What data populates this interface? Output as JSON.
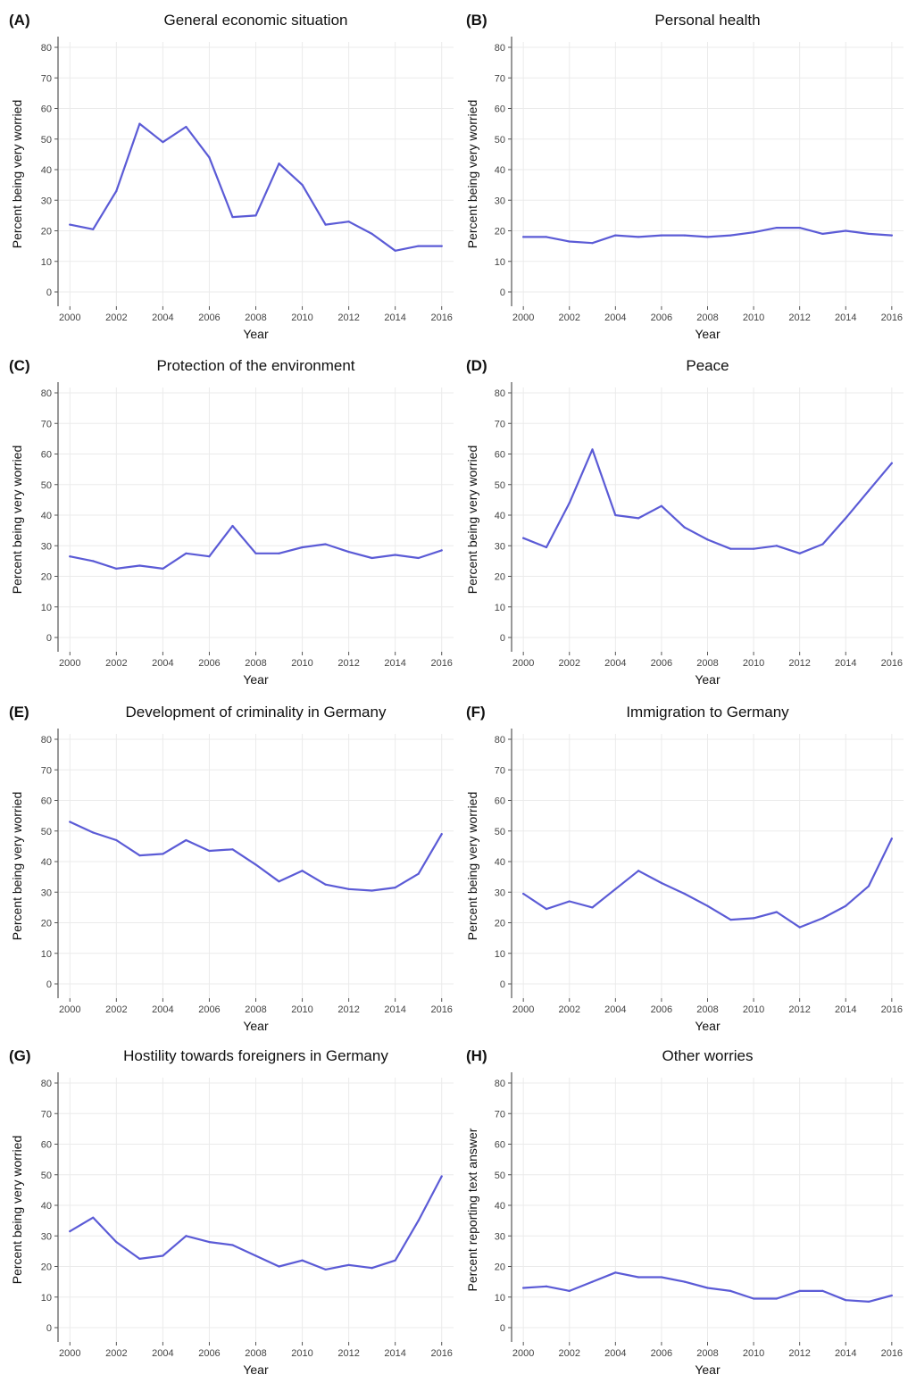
{
  "chart_data": [
    {
      "type": "line",
      "panel": "(A)",
      "title": "General economic situation",
      "xlabel": "Year",
      "ylabel": "Percent being very worried",
      "xlim": [
        2000,
        2016
      ],
      "ylim": [
        0,
        80
      ],
      "x_ticks": [
        2000,
        2002,
        2004,
        2006,
        2008,
        2010,
        2012,
        2014,
        2016
      ],
      "y_ticks": [
        0,
        10,
        20,
        30,
        40,
        50,
        60,
        70,
        80
      ],
      "x": [
        2000,
        2001,
        2002,
        2003,
        2004,
        2005,
        2006,
        2007,
        2008,
        2009,
        2010,
        2011,
        2012,
        2013,
        2014,
        2015,
        2016
      ],
      "values": [
        22,
        20.5,
        33,
        55,
        49,
        54,
        44,
        24.5,
        25,
        42,
        35,
        22,
        23,
        19,
        13.5,
        15,
        15
      ],
      "grid": true,
      "line_color": "#5b5bd6"
    },
    {
      "type": "line",
      "panel": "(B)",
      "title": "Personal health",
      "xlabel": "Year",
      "ylabel": "Percent being very worried",
      "xlim": [
        2000,
        2016
      ],
      "ylim": [
        0,
        80
      ],
      "x_ticks": [
        2000,
        2002,
        2004,
        2006,
        2008,
        2010,
        2012,
        2014,
        2016
      ],
      "y_ticks": [
        0,
        10,
        20,
        30,
        40,
        50,
        60,
        70,
        80
      ],
      "x": [
        2000,
        2001,
        2002,
        2003,
        2004,
        2005,
        2006,
        2007,
        2008,
        2009,
        2010,
        2011,
        2012,
        2013,
        2014,
        2015,
        2016
      ],
      "values": [
        18,
        18,
        16.5,
        16,
        18.5,
        18,
        18.5,
        18.5,
        18,
        18.5,
        19.5,
        21,
        21,
        19,
        20,
        19,
        18.5
      ],
      "grid": true,
      "line_color": "#5b5bd6"
    },
    {
      "type": "line",
      "panel": "(C)",
      "title": "Protection of the environment",
      "xlabel": "Year",
      "ylabel": "Percent being very worried",
      "xlim": [
        2000,
        2016
      ],
      "ylim": [
        0,
        80
      ],
      "x_ticks": [
        2000,
        2002,
        2004,
        2006,
        2008,
        2010,
        2012,
        2014,
        2016
      ],
      "y_ticks": [
        0,
        10,
        20,
        30,
        40,
        50,
        60,
        70,
        80
      ],
      "x": [
        2000,
        2001,
        2002,
        2003,
        2004,
        2005,
        2006,
        2007,
        2008,
        2009,
        2010,
        2011,
        2012,
        2013,
        2014,
        2015,
        2016
      ],
      "values": [
        26.5,
        25,
        22.5,
        23.5,
        22.5,
        27.5,
        26.5,
        36.5,
        27.5,
        27.5,
        29.5,
        30.5,
        28,
        26,
        27,
        26,
        28.5
      ],
      "grid": true,
      "line_color": "#5b5bd6"
    },
    {
      "type": "line",
      "panel": "(D)",
      "title": "Peace",
      "xlabel": "Year",
      "ylabel": "Percent being very worried",
      "xlim": [
        2000,
        2016
      ],
      "ylim": [
        0,
        80
      ],
      "x_ticks": [
        2000,
        2002,
        2004,
        2006,
        2008,
        2010,
        2012,
        2014,
        2016
      ],
      "y_ticks": [
        0,
        10,
        20,
        30,
        40,
        50,
        60,
        70,
        80
      ],
      "x": [
        2000,
        2001,
        2002,
        2003,
        2004,
        2005,
        2006,
        2007,
        2008,
        2009,
        2010,
        2011,
        2012,
        2013,
        2014,
        2015,
        2016
      ],
      "values": [
        32.5,
        29.5,
        44,
        61.5,
        40,
        39,
        43,
        36,
        32,
        29,
        29,
        30,
        27.5,
        30.5,
        39,
        48,
        57
      ],
      "grid": true,
      "line_color": "#5b5bd6"
    },
    {
      "type": "line",
      "panel": "(E)",
      "title": "Development of criminality in Germany",
      "xlabel": "Year",
      "ylabel": "Percent being very worried",
      "xlim": [
        2000,
        2016
      ],
      "ylim": [
        0,
        80
      ],
      "x_ticks": [
        2000,
        2002,
        2004,
        2006,
        2008,
        2010,
        2012,
        2014,
        2016
      ],
      "y_ticks": [
        0,
        10,
        20,
        30,
        40,
        50,
        60,
        70,
        80
      ],
      "x": [
        2000,
        2001,
        2002,
        2003,
        2004,
        2005,
        2006,
        2007,
        2008,
        2009,
        2010,
        2011,
        2012,
        2013,
        2014,
        2015,
        2016
      ],
      "values": [
        53,
        49.5,
        47,
        42,
        42.5,
        47,
        43.5,
        44,
        39,
        33.5,
        37,
        32.5,
        31,
        30.5,
        31.5,
        36,
        49
      ],
      "grid": true,
      "line_color": "#5b5bd6"
    },
    {
      "type": "line",
      "panel": "(F)",
      "title": "Immigration to Germany",
      "xlabel": "Year",
      "ylabel": "Percent being very worried",
      "xlim": [
        2000,
        2016
      ],
      "ylim": [
        0,
        80
      ],
      "x_ticks": [
        2000,
        2002,
        2004,
        2006,
        2008,
        2010,
        2012,
        2014,
        2016
      ],
      "y_ticks": [
        0,
        10,
        20,
        30,
        40,
        50,
        60,
        70,
        80
      ],
      "x": [
        2000,
        2001,
        2002,
        2003,
        2004,
        2005,
        2006,
        2007,
        2008,
        2009,
        2010,
        2011,
        2012,
        2013,
        2014,
        2015,
        2016
      ],
      "values": [
        29.5,
        24.5,
        27,
        25,
        31,
        37,
        33,
        29.5,
        25.5,
        21,
        21.5,
        23.5,
        18.5,
        21.5,
        25.5,
        32,
        47.5
      ],
      "grid": true,
      "line_color": "#5b5bd6"
    },
    {
      "type": "line",
      "panel": "(G)",
      "title": "Hostility towards foreigners in Germany",
      "xlabel": "Year",
      "ylabel": "Percent being very worried",
      "xlim": [
        2000,
        2016
      ],
      "ylim": [
        0,
        80
      ],
      "x_ticks": [
        2000,
        2002,
        2004,
        2006,
        2008,
        2010,
        2012,
        2014,
        2016
      ],
      "y_ticks": [
        0,
        10,
        20,
        30,
        40,
        50,
        60,
        70,
        80
      ],
      "x": [
        2000,
        2001,
        2002,
        2003,
        2004,
        2005,
        2006,
        2007,
        2008,
        2009,
        2010,
        2011,
        2012,
        2013,
        2014,
        2015,
        2016
      ],
      "values": [
        31.5,
        36,
        28,
        22.5,
        23.5,
        30,
        28,
        27,
        23.5,
        20,
        22,
        19,
        20.5,
        19.5,
        22,
        35,
        49.5
      ],
      "grid": true,
      "line_color": "#5b5bd6"
    },
    {
      "type": "line",
      "panel": "(H)",
      "title": "Other worries",
      "xlabel": "Year",
      "ylabel": "Percent reporting text answer",
      "xlim": [
        2000,
        2016
      ],
      "ylim": [
        0,
        80
      ],
      "x_ticks": [
        2000,
        2002,
        2004,
        2006,
        2008,
        2010,
        2012,
        2014,
        2016
      ],
      "y_ticks": [
        0,
        10,
        20,
        30,
        40,
        50,
        60,
        70,
        80
      ],
      "x": [
        2000,
        2001,
        2002,
        2003,
        2004,
        2005,
        2006,
        2007,
        2008,
        2009,
        2010,
        2011,
        2012,
        2013,
        2014,
        2015,
        2016
      ],
      "values": [
        13,
        13.5,
        12,
        15,
        18,
        16.5,
        16.5,
        15,
        13,
        12,
        9.5,
        9.5,
        12,
        12,
        9,
        8.5,
        10.5
      ],
      "grid": true,
      "line_color": "#5b5bd6"
    }
  ]
}
